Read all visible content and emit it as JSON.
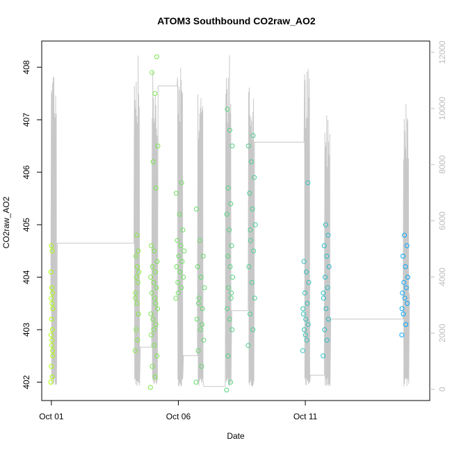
{
  "chart_data": {
    "type": "scatter",
    "title": "ATOM3 Southbound CO2raw_AO2",
    "xlabel": "Date",
    "ylabel": "CO2raw_AO2",
    "x_ticks": [
      "Oct 01",
      "Oct 06",
      "Oct 11"
    ],
    "x_tick_days": [
      1,
      6,
      11
    ],
    "xlim": [
      0.62,
      15.9
    ],
    "ylim": [
      401.65,
      408.5
    ],
    "y_ticks": [
      402,
      403,
      404,
      405,
      406,
      407,
      408
    ],
    "y2_lim": [
      -400,
      12400
    ],
    "y2_ticks": [
      0,
      2000,
      4000,
      6000,
      8000,
      10000,
      12000
    ],
    "grid": false,
    "point_style": "open circles colored by date (yellow-green to blue)",
    "series": [
      {
        "kind": "points",
        "color_range": [
          "#aaff00",
          "#00a6ff"
        ],
        "groups": [
          {
            "day_start": 0.98,
            "day_end": 1.06,
            "y_values": [
              402.0,
              402.1,
              402.3,
              402.6,
              402.7,
              402.9,
              403.0,
              403.2,
              403.4,
              403.5,
              403.6,
              403.7,
              403.8,
              404.1,
              404.5,
              404.6,
              402.5,
              402.8
            ]
          },
          {
            "day_start": 4.3,
            "day_end": 4.45,
            "y_values": [
              402.6,
              402.8,
              403.0,
              403.3,
              403.5,
              403.7,
              403.9,
              404.0,
              404.1,
              404.2,
              404.4,
              404.5,
              404.8,
              403.6
            ]
          },
          {
            "day_start": 4.9,
            "day_end": 5.2,
            "y_values": [
              401.9,
              402.1,
              402.3,
              402.5,
              402.7,
              402.9,
              403.1,
              403.2,
              403.4,
              403.6,
              403.7,
              403.8,
              403.9,
              404.0,
              404.1,
              404.2,
              404.3,
              404.5,
              404.6,
              405.7,
              406.2,
              406.5,
              407.5,
              407.9,
              408.2,
              403.0,
              403.3,
              403.5
            ]
          },
          {
            "day_start": 5.9,
            "day_end": 6.25,
            "y_values": [
              403.6,
              403.8,
              403.9,
              404.0,
              404.1,
              404.2,
              404.3,
              404.4,
              404.5,
              404.6,
              404.7,
              404.9,
              405.2,
              405.6,
              405.8,
              403.7
            ]
          },
          {
            "day_start": 6.7,
            "day_end": 7.05,
            "y_values": [
              402.0,
              402.3,
              402.6,
              402.8,
              403.0,
              403.2,
              403.4,
              403.6,
              403.8,
              404.0,
              404.2,
              404.4,
              404.7,
              405.3,
              403.1,
              403.5
            ]
          },
          {
            "day_start": 7.9,
            "day_end": 8.15,
            "y_values": [
              401.85,
              402.0,
              402.5,
              403.0,
              403.2,
              403.4,
              403.6,
              403.8,
              404.0,
              404.2,
              404.4,
              404.6,
              404.9,
              405.2,
              405.4,
              405.7,
              406.5,
              406.8,
              407.2,
              403.7
            ]
          },
          {
            "day_start": 8.75,
            "day_end": 9.05,
            "y_values": [
              402.7,
              403.0,
              403.3,
              403.6,
              403.9,
              404.2,
              404.5,
              404.7,
              405.0,
              405.3,
              405.6,
              405.9,
              406.2,
              406.5,
              406.7,
              404.9
            ]
          },
          {
            "day_start": 10.9,
            "day_end": 11.15,
            "y_values": [
              402.6,
              402.8,
              403.0,
              403.1,
              403.2,
              403.3,
              403.5,
              403.7,
              403.9,
              404.1,
              404.3,
              405.8,
              402.9,
              403.4
            ]
          },
          {
            "day_start": 11.7,
            "day_end": 11.95,
            "y_values": [
              402.5,
              402.8,
              403.0,
              403.2,
              403.4,
              403.6,
              403.8,
              404.0,
              404.2,
              404.4,
              404.6,
              404.8,
              405.0,
              403.7
            ]
          },
          {
            "day_start": 14.8,
            "day_end": 15.05,
            "y_values": [
              402.9,
              403.1,
              403.3,
              403.5,
              403.6,
              403.7,
              403.8,
              403.9,
              404.0,
              404.2,
              404.4,
              404.6,
              404.8,
              403.4
            ]
          }
        ]
      },
      {
        "kind": "line",
        "axis": "right",
        "color": "#c8c8c8",
        "bursts": [
          {
            "day": 1.08,
            "peak": 12000
          },
          {
            "day": 4.35,
            "peak": 12000
          },
          {
            "day": 5.05,
            "peak": 11500
          },
          {
            "day": 6.05,
            "peak": 12000
          },
          {
            "day": 6.85,
            "peak": 11200
          },
          {
            "day": 7.95,
            "peak": 12000
          },
          {
            "day": 8.85,
            "peak": 11000
          },
          {
            "day": 11.05,
            "peak": 11500
          },
          {
            "day": 11.85,
            "peak": 10000
          },
          {
            "day": 14.95,
            "peak": 10500
          }
        ]
      }
    ]
  }
}
